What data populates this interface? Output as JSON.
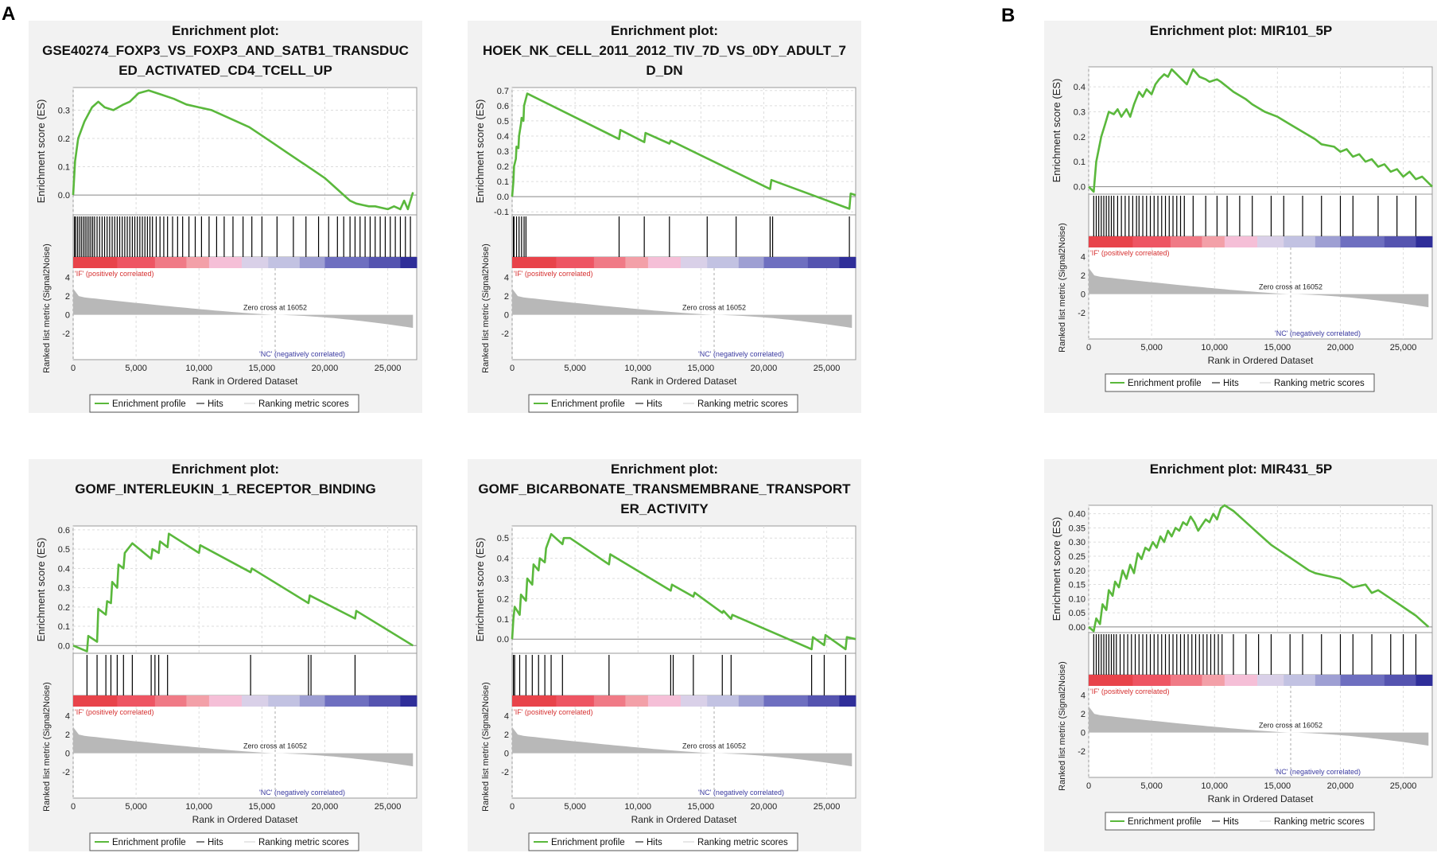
{
  "panel_labels": [
    "A",
    "B"
  ],
  "common": {
    "es_label": "Enrichment score (ES)",
    "metric_label": "Ranked list metric (Signal2Noise)",
    "x_label": "Rank in Ordered Dataset",
    "x_ticks": [
      0,
      5000,
      10000,
      15000,
      20000,
      25000
    ],
    "x_tick_labels": [
      "0",
      "5,000",
      "10,000",
      "15,000",
      "20,000",
      "25,000"
    ],
    "x_max": 27300,
    "metric_ticks": [
      4,
      2,
      0,
      -2
    ],
    "zero_cross_label": "Zero cross at 16052",
    "zero_cross": 16052,
    "pos_label": "'IF' (positively correlated)",
    "neg_label": "'NC' (negatively correlated)",
    "legend": [
      "Enrichment profile",
      "Hits",
      "Ranking metric scores"
    ],
    "colors": {
      "es_line": "#5ab83c",
      "hits": "#000000",
      "metric_fill": "#b8b8b8",
      "pos_text": "#d63030",
      "neg_text": "#3a3aa0",
      "panel_bg": "#f2f2f2",
      "plot_bg": "#ffffff",
      "grid": "#dddddd"
    }
  },
  "chart_data": [
    {
      "type": "line",
      "title_lines": [
        "Enrichment plot:",
        "GSE40274_FOXP3_VS_FOXP3_AND_SATB1_TRANSDUC",
        "ED_ACTIVATED_CD4_TCELL_UP"
      ],
      "ylim": [
        -0.07,
        0.38
      ],
      "yticks": [
        "0.0",
        "0.1",
        "0.2",
        "0.3"
      ],
      "ytick_values": [
        0,
        0.1,
        0.2,
        0.3
      ],
      "es_x": [
        0,
        150,
        400,
        900,
        1500,
        2000,
        2500,
        3200,
        4000,
        4500,
        5200,
        6000,
        7000,
        8000,
        9000,
        10000,
        11000,
        12000,
        13000,
        14000,
        15000,
        16000,
        17000,
        18000,
        19000,
        20000,
        20500,
        21000,
        21500,
        22000,
        22500,
        23000,
        23500,
        24000,
        24500,
        25000,
        25500,
        26000,
        26300,
        26600,
        27000
      ],
      "es_y": [
        0,
        0.12,
        0.2,
        0.26,
        0.31,
        0.33,
        0.31,
        0.3,
        0.32,
        0.33,
        0.36,
        0.37,
        0.355,
        0.34,
        0.32,
        0.31,
        0.3,
        0.28,
        0.26,
        0.24,
        0.21,
        0.18,
        0.15,
        0.12,
        0.09,
        0.06,
        0.04,
        0.02,
        0.0,
        -0.02,
        -0.03,
        -0.035,
        -0.04,
        -0.04,
        -0.045,
        -0.05,
        -0.04,
        -0.05,
        -0.02,
        -0.05,
        0.01
      ],
      "hits": [
        100,
        200,
        350,
        500,
        650,
        800,
        950,
        1100,
        1250,
        1400,
        1550,
        1700,
        1900,
        2100,
        2300,
        2500,
        2700,
        2900,
        3100,
        3300,
        3500,
        3700,
        3900,
        4100,
        4300,
        4500,
        4700,
        4900,
        5100,
        5300,
        5500,
        5700,
        5900,
        6100,
        6300,
        6600,
        6900,
        7200,
        7500,
        7900,
        8300,
        8700,
        9200,
        9700,
        10200,
        10800,
        11400,
        12000,
        12700,
        13500,
        14200,
        15000,
        16200,
        17500,
        18500,
        19500,
        20300,
        21000,
        21500,
        22000,
        22400,
        22800,
        23200,
        23600,
        24000,
        24400,
        24800,
        25200,
        25600,
        26000,
        26400,
        26800
      ]
    },
    {
      "type": "line",
      "title_lines": [
        "Enrichment plot:",
        "HOEK_NK_CELL_2011_2012_TIV_7D_VS_0DY_ADULT_7",
        "D_DN"
      ],
      "ylim": [
        -0.12,
        0.72
      ],
      "yticks": [
        "-0.1",
        "0.0",
        "0.1",
        "0.2",
        "0.3",
        "0.4",
        "0.5",
        "0.6",
        "0.7"
      ],
      "ytick_values": [
        -0.1,
        0,
        0.1,
        0.2,
        0.3,
        0.4,
        0.5,
        0.6,
        0.7
      ],
      "es_x": [
        0,
        100,
        150,
        300,
        350,
        500,
        550,
        700,
        750,
        900,
        950,
        1200,
        8500,
        8600,
        10500,
        10600,
        12500,
        12600,
        20500,
        20600,
        26800,
        26900,
        27300
      ],
      "es_y": [
        0,
        0.1,
        0.2,
        0.25,
        0.33,
        0.32,
        0.4,
        0.48,
        0.52,
        0.5,
        0.6,
        0.68,
        0.38,
        0.44,
        0.36,
        0.42,
        0.35,
        0.37,
        0.05,
        0.11,
        -0.08,
        0.02,
        0.01
      ],
      "hits": [
        100,
        150,
        350,
        550,
        750,
        950,
        1100,
        8500,
        10500,
        12500,
        15500,
        17800,
        20500,
        20700,
        26800
      ]
    },
    {
      "type": "line",
      "title_lines": [
        "Enrichment plot: MIR101_5P"
      ],
      "ylim": [
        -0.03,
        0.48
      ],
      "yticks": [
        "0.0",
        "0.1",
        "0.2",
        "0.3",
        "0.4"
      ],
      "ytick_values": [
        0,
        0.1,
        0.2,
        0.3,
        0.4
      ],
      "es_x": [
        0,
        400,
        600,
        1000,
        1300,
        1600,
        2000,
        2300,
        2600,
        3000,
        3300,
        3600,
        4000,
        4300,
        4600,
        5000,
        5300,
        5600,
        6000,
        6300,
        6600,
        7000,
        7400,
        7800,
        8300,
        8800,
        9300,
        9600,
        10200,
        10500,
        11500,
        12500,
        13000,
        14000,
        15000,
        16000,
        17000,
        18000,
        18500,
        19500,
        20000,
        20500,
        21000,
        21500,
        22000,
        22500,
        23000,
        23500,
        24000,
        24500,
        25000,
        25500,
        26000,
        26500,
        27300
      ],
      "es_y": [
        0,
        -0.02,
        0.1,
        0.2,
        0.25,
        0.3,
        0.29,
        0.31,
        0.28,
        0.31,
        0.28,
        0.33,
        0.38,
        0.36,
        0.39,
        0.37,
        0.41,
        0.43,
        0.45,
        0.44,
        0.47,
        0.45,
        0.43,
        0.41,
        0.47,
        0.44,
        0.43,
        0.42,
        0.43,
        0.42,
        0.38,
        0.35,
        0.33,
        0.3,
        0.28,
        0.25,
        0.22,
        0.19,
        0.17,
        0.16,
        0.14,
        0.15,
        0.12,
        0.13,
        0.1,
        0.11,
        0.08,
        0.09,
        0.06,
        0.07,
        0.04,
        0.06,
        0.03,
        0.04,
        0.0
      ],
      "hits": [
        400,
        600,
        800,
        1000,
        1200,
        1400,
        1600,
        1800,
        2000,
        2300,
        2600,
        2900,
        3200,
        3500,
        3800,
        4000,
        4300,
        4600,
        4900,
        5200,
        5500,
        5800,
        6100,
        6400,
        6700,
        7000,
        7300,
        7600,
        8300,
        9300,
        10200,
        11000,
        12000,
        13000,
        14500,
        15500,
        17000,
        18500,
        20000,
        21000,
        23000,
        24500,
        26000
      ]
    },
    {
      "type": "line",
      "title_lines": [
        "Enrichment plot:",
        "GOMF_INTERLEUKIN_1_RECEPTOR_BINDING"
      ],
      "ylim": [
        -0.04,
        0.62
      ],
      "yticks": [
        "0.0",
        "0.1",
        "0.2",
        "0.3",
        "0.4",
        "0.5",
        "0.6"
      ],
      "ytick_values": [
        0,
        0.1,
        0.2,
        0.3,
        0.4,
        0.5,
        0.6
      ],
      "es_x": [
        0,
        1100,
        1200,
        1900,
        2000,
        2600,
        2700,
        3000,
        3100,
        3500,
        3600,
        4000,
        4100,
        4700,
        6200,
        6300,
        6800,
        6900,
        7500,
        7600,
        10000,
        10100,
        14100,
        14200,
        18700,
        18800,
        22400,
        22500,
        27000
      ],
      "es_y": [
        0,
        -0.03,
        0.05,
        0.02,
        0.19,
        0.16,
        0.23,
        0.22,
        0.33,
        0.3,
        0.42,
        0.4,
        0.48,
        0.53,
        0.45,
        0.5,
        0.48,
        0.54,
        0.51,
        0.58,
        0.48,
        0.52,
        0.38,
        0.4,
        0.22,
        0.26,
        0.14,
        0.18,
        0.0
      ],
      "hits": [
        1100,
        1900,
        2600,
        3000,
        3500,
        4000,
        4700,
        6200,
        6500,
        6800,
        7500,
        14100,
        18700,
        18900,
        22400
      ]
    },
    {
      "type": "line",
      "title_lines": [
        "Enrichment plot:",
        "GOMF_BICARBONATE_TRANSMEMBRANE_TRANSPORT",
        "ER_ACTIVITY"
      ],
      "ylim": [
        -0.07,
        0.56
      ],
      "yticks": [
        "0.0",
        "0.1",
        "0.2",
        "0.3",
        "0.4",
        "0.5"
      ],
      "ytick_values": [
        0,
        0.1,
        0.2,
        0.3,
        0.4,
        0.5
      ],
      "es_x": [
        0,
        100,
        200,
        600,
        700,
        1100,
        1200,
        1600,
        1700,
        2100,
        2200,
        2600,
        2700,
        3100,
        4000,
        4100,
        4600,
        7700,
        7800,
        12600,
        12700,
        14400,
        14500,
        16700,
        16800,
        17400,
        17500,
        23800,
        23900,
        24800,
        24900,
        26500,
        26600,
        27300
      ],
      "es_y": [
        0,
        0.1,
        0.16,
        0.12,
        0.22,
        0.19,
        0.3,
        0.27,
        0.37,
        0.34,
        0.4,
        0.38,
        0.45,
        0.52,
        0.47,
        0.5,
        0.5,
        0.37,
        0.42,
        0.24,
        0.27,
        0.21,
        0.23,
        0.13,
        0.14,
        0.1,
        0.12,
        -0.05,
        0.01,
        -0.03,
        0.02,
        -0.05,
        0.01,
        0.0
      ],
      "hits": [
        100,
        200,
        600,
        1100,
        1600,
        2100,
        2600,
        3100,
        4000,
        7700,
        12600,
        12800,
        14400,
        16700,
        17400,
        23800,
        24800,
        26500
      ]
    },
    {
      "type": "line",
      "title_lines": [
        "Enrichment plot: MIR431_5P"
      ],
      "ylim": [
        -0.02,
        0.43
      ],
      "yticks": [
        "0.00",
        "0.05",
        "0.10",
        "0.15",
        "0.20",
        "0.25",
        "0.30",
        "0.35",
        "0.40"
      ],
      "ytick_values": [
        0,
        0.05,
        0.1,
        0.15,
        0.2,
        0.25,
        0.3,
        0.35,
        0.4
      ],
      "es_x": [
        0,
        400,
        600,
        900,
        1100,
        1400,
        1600,
        1900,
        2100,
        2400,
        2700,
        3000,
        3300,
        3600,
        3900,
        4200,
        4500,
        4800,
        5100,
        5400,
        5700,
        6000,
        6300,
        6600,
        6900,
        7200,
        7500,
        7800,
        8100,
        8400,
        8700,
        9000,
        9300,
        9600,
        9900,
        10200,
        10500,
        10800,
        11500,
        12500,
        13500,
        14500,
        15500,
        16500,
        17500,
        18000,
        19000,
        20000,
        21000,
        22000,
        22500,
        23000,
        24000,
        25000,
        26000,
        27000
      ],
      "es_y": [
        0,
        -0.015,
        0.03,
        0.01,
        0.08,
        0.06,
        0.13,
        0.11,
        0.16,
        0.14,
        0.2,
        0.17,
        0.22,
        0.19,
        0.26,
        0.24,
        0.28,
        0.27,
        0.3,
        0.28,
        0.32,
        0.3,
        0.34,
        0.32,
        0.35,
        0.34,
        0.37,
        0.36,
        0.39,
        0.37,
        0.34,
        0.36,
        0.38,
        0.37,
        0.4,
        0.38,
        0.42,
        0.43,
        0.41,
        0.37,
        0.33,
        0.29,
        0.26,
        0.23,
        0.2,
        0.19,
        0.18,
        0.17,
        0.14,
        0.15,
        0.12,
        0.13,
        0.1,
        0.07,
        0.04,
        0.0
      ],
      "hits": [
        400,
        600,
        800,
        1000,
        1200,
        1400,
        1600,
        1800,
        2000,
        2200,
        2500,
        2800,
        3100,
        3400,
        3700,
        4000,
        4300,
        4600,
        4900,
        5200,
        5500,
        5800,
        6100,
        6400,
        6700,
        7000,
        7300,
        7600,
        7900,
        8200,
        8500,
        8800,
        9100,
        9400,
        9700,
        10000,
        10300,
        10600,
        11500,
        12500,
        13500,
        14500,
        16000,
        17000,
        18500,
        20000,
        21000,
        22500,
        24000,
        25000,
        26000
      ]
    }
  ]
}
